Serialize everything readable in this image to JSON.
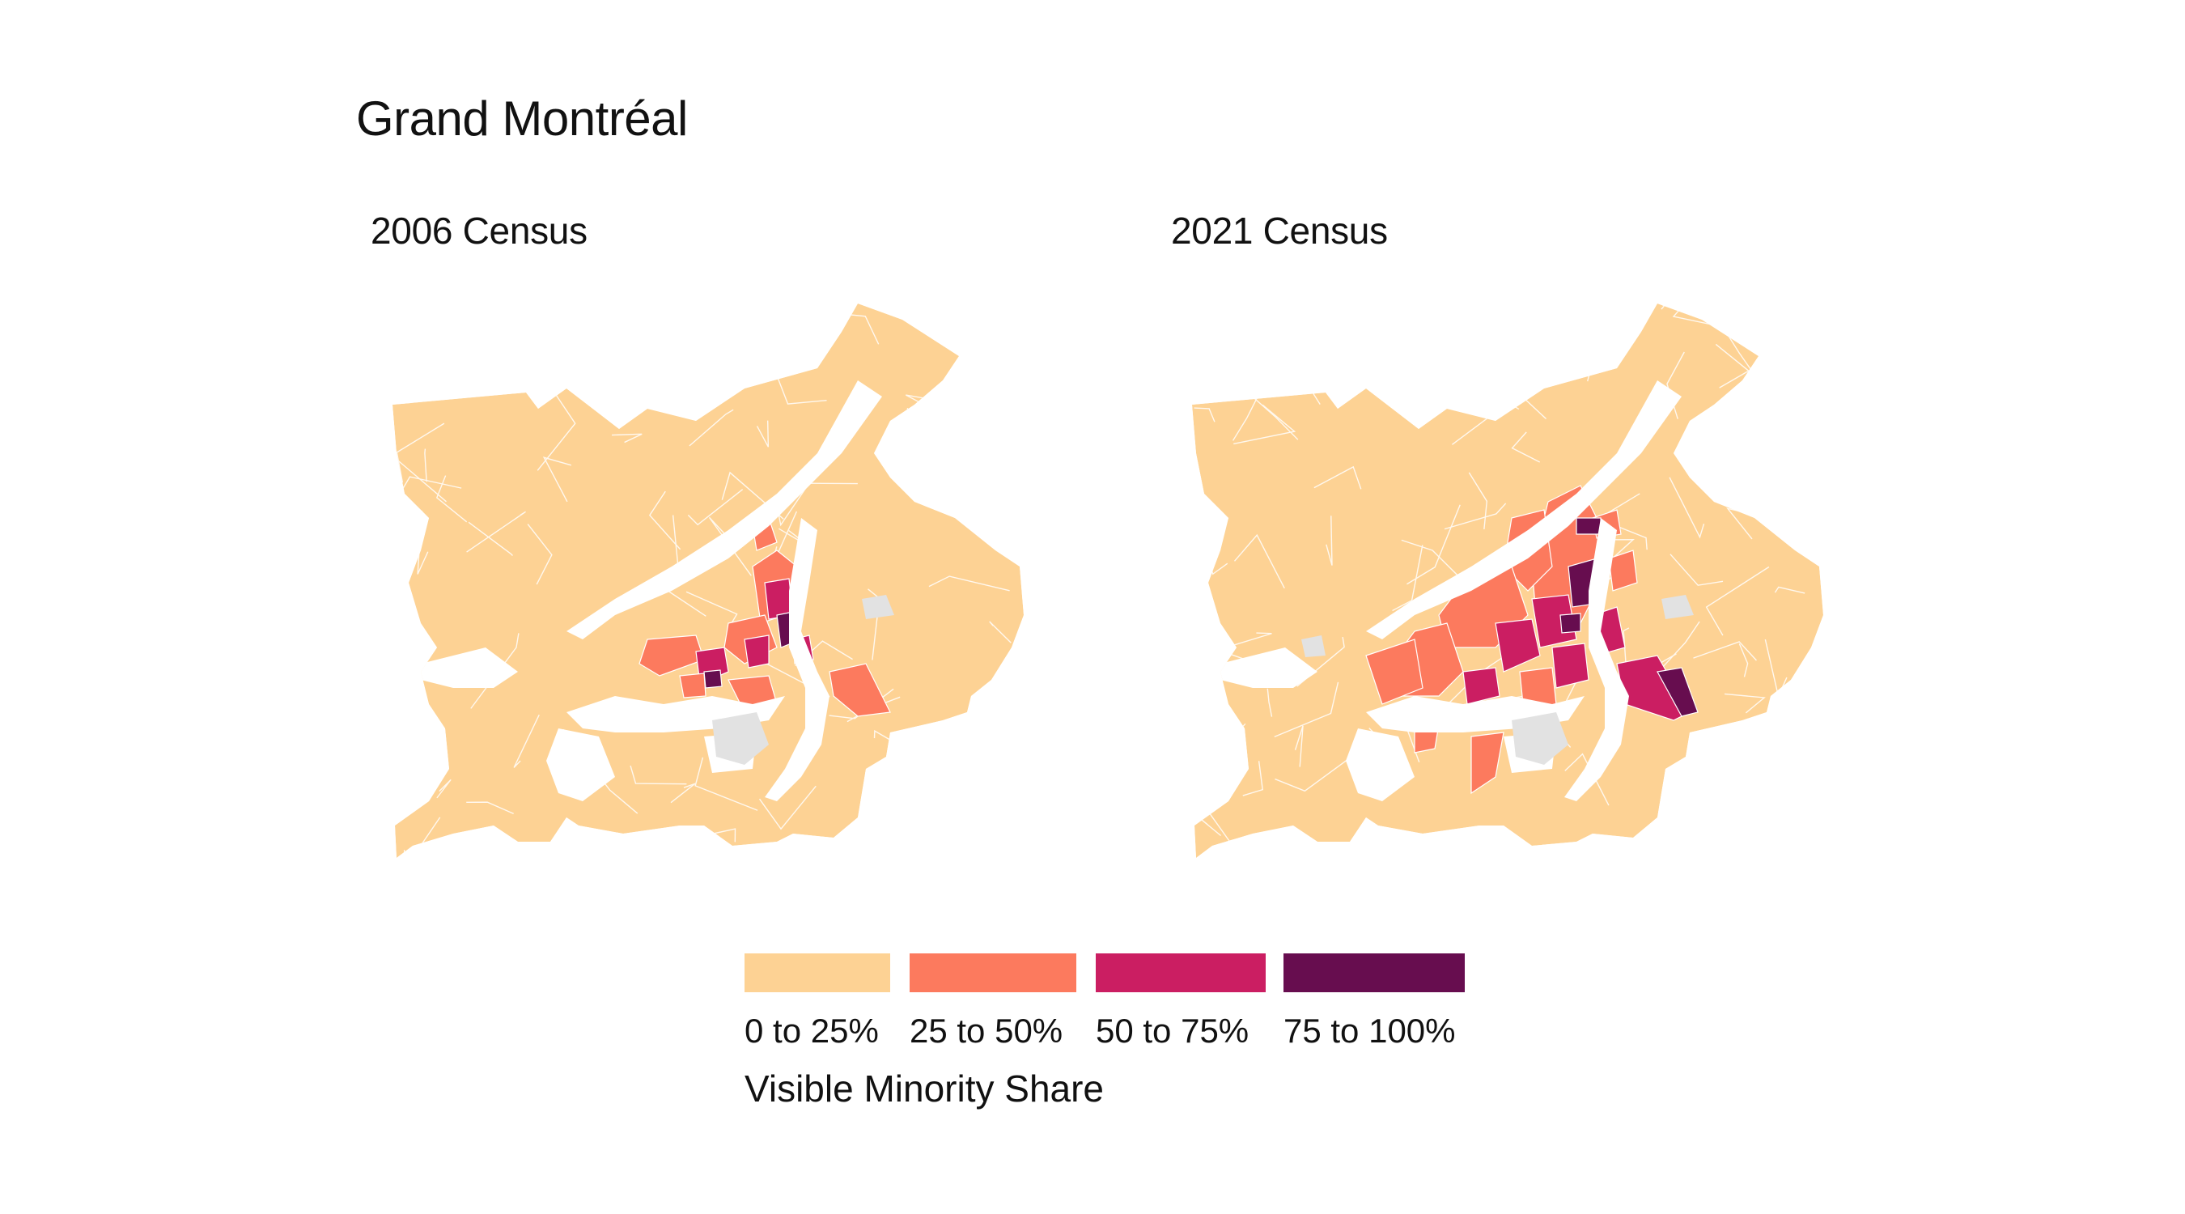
{
  "title": "Grand Montréal",
  "maps": [
    {
      "id": "2006",
      "title": "2006 Census"
    },
    {
      "id": "2021",
      "title": "2021 Census"
    }
  ],
  "legend": {
    "title": "Visible Minority Share",
    "items": [
      {
        "label": "0 to 25%",
        "color": "#fdd294"
      },
      {
        "label": "25 to 50%",
        "color": "#fc7a5e"
      },
      {
        "label": "50 to 75%",
        "color": "#cb1e62"
      },
      {
        "label": "75 to 100%",
        "color": "#670d4f"
      }
    ]
  },
  "colors": {
    "no_data": "#e2e2e2",
    "water": "#ffffff",
    "boundary": "#ffffff"
  }
}
